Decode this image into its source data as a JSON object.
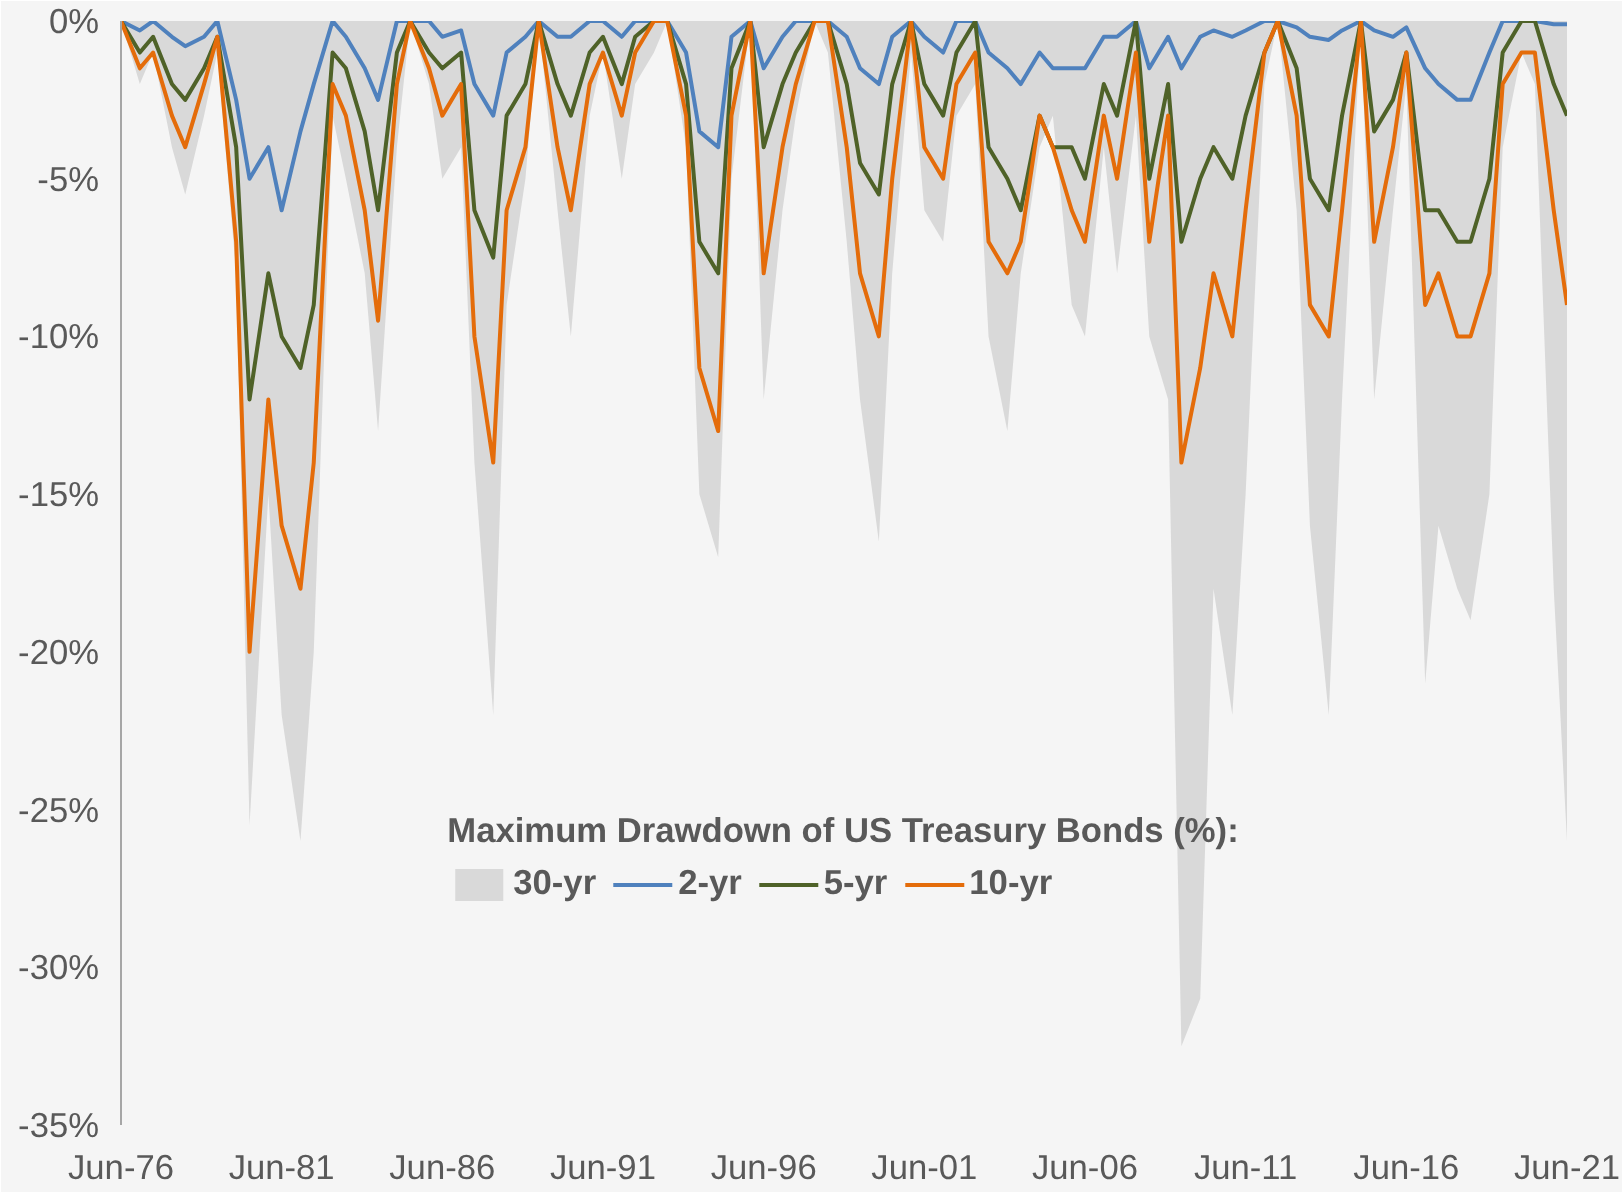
{
  "chart_data": {
    "type": "line",
    "legend_title": "Maximum Drawdown of US Treasury Bonds (%):",
    "x": [
      "1976-06",
      "1977-01",
      "1977-06",
      "1978-01",
      "1978-06",
      "1979-01",
      "1979-06",
      "1980-01",
      "1980-06",
      "1981-01",
      "1981-06",
      "1982-01",
      "1982-06",
      "1983-01",
      "1983-06",
      "1984-01",
      "1984-06",
      "1985-01",
      "1985-06",
      "1986-01",
      "1986-06",
      "1987-01",
      "1987-06",
      "1988-01",
      "1988-06",
      "1989-01",
      "1989-06",
      "1990-01",
      "1990-06",
      "1991-01",
      "1991-06",
      "1992-01",
      "1992-06",
      "1993-01",
      "1993-06",
      "1994-01",
      "1994-06",
      "1995-01",
      "1995-06",
      "1996-01",
      "1996-06",
      "1997-01",
      "1997-06",
      "1998-01",
      "1998-06",
      "1999-01",
      "1999-06",
      "2000-01",
      "2000-06",
      "2001-01",
      "2001-06",
      "2002-01",
      "2002-06",
      "2003-01",
      "2003-06",
      "2004-01",
      "2004-06",
      "2005-01",
      "2005-06",
      "2006-01",
      "2006-06",
      "2007-01",
      "2007-06",
      "2008-01",
      "2008-06",
      "2009-01",
      "2009-06",
      "2010-01",
      "2010-06",
      "2011-01",
      "2011-06",
      "2012-01",
      "2012-06",
      "2013-01",
      "2013-06",
      "2014-01",
      "2014-06",
      "2015-01",
      "2015-06",
      "2016-01",
      "2016-06",
      "2017-01",
      "2017-06",
      "2018-01",
      "2018-06",
      "2019-01",
      "2019-06",
      "2020-01",
      "2020-06",
      "2021-01",
      "2021-06"
    ],
    "series": [
      {
        "name": "30-yr",
        "type": "area",
        "color": "#d9d9d9",
        "values": [
          0,
          -2,
          -1,
          -4,
          -5.5,
          -3,
          -1,
          -8,
          -25.5,
          -15,
          -22,
          -26,
          -20,
          -3,
          -5,
          -8,
          -13,
          -4,
          0,
          -2,
          -5,
          -4,
          -14,
          -22,
          -9,
          -5,
          0,
          -6,
          -10,
          -3,
          -1,
          -5,
          -2,
          -1,
          0,
          -4,
          -15,
          -17,
          -5,
          0,
          -12,
          -6,
          -3,
          0,
          -1,
          -7,
          -12,
          -16.5,
          -8,
          -1,
          -6,
          -7,
          -3,
          -2,
          -10,
          -13,
          -8,
          -4,
          -3,
          -9,
          -10,
          -4,
          -8,
          -3,
          -10,
          -12,
          -32.5,
          -31,
          -18,
          -22,
          -15,
          -2,
          0,
          -6,
          -16,
          -22,
          -12,
          0,
          -12,
          -6,
          -2,
          -21,
          -16,
          -18,
          -19,
          -15,
          -4,
          -1,
          -2,
          -18,
          -26
        ]
      },
      {
        "name": "2-yr",
        "color": "#4f81bd",
        "values": [
          0,
          -0.3,
          0,
          -0.5,
          -0.8,
          -0.5,
          0,
          -2.5,
          -5,
          -4,
          -6,
          -3.5,
          -2,
          0,
          -0.5,
          -1.5,
          -2.5,
          0,
          0,
          0,
          -0.5,
          -0.3,
          -2,
          -3,
          -1,
          -0.5,
          0,
          -0.5,
          -0.5,
          0,
          0,
          -0.5,
          0,
          0,
          0,
          -1,
          -3.5,
          -4,
          -0.5,
          0,
          -1.5,
          -0.5,
          0,
          0,
          0,
          -0.5,
          -1.5,
          -2,
          -0.5,
          0,
          -0.5,
          -1,
          0,
          0,
          -1,
          -1.5,
          -2,
          -1,
          -1.5,
          -1.5,
          -1.5,
          -0.5,
          -0.5,
          0,
          -1.5,
          -0.5,
          -1.5,
          -0.5,
          -0.3,
          -0.5,
          -0.3,
          0,
          0,
          -0.2,
          -0.5,
          -0.6,
          -0.3,
          0,
          -0.3,
          -0.5,
          -0.2,
          -1.5,
          -2,
          -2.5,
          -2.5,
          -1,
          0,
          0,
          0,
          -0.1,
          -0.1
        ]
      },
      {
        "name": "5-yr",
        "color": "#4f6228",
        "values": [
          0,
          -1,
          -0.5,
          -2,
          -2.5,
          -1.5,
          -0.5,
          -4,
          -12,
          -8,
          -10,
          -11,
          -9,
          -1,
          -1.5,
          -3.5,
          -6,
          -1,
          0,
          -1,
          -1.5,
          -1,
          -6,
          -7.5,
          -3,
          -2,
          0,
          -2,
          -3,
          -1,
          -0.5,
          -2,
          -0.5,
          0,
          0,
          -2,
          -7,
          -8,
          -1.5,
          0,
          -4,
          -2,
          -1,
          0,
          0,
          -2,
          -4.5,
          -5.5,
          -2,
          0,
          -2,
          -3,
          -1,
          0,
          -4,
          -5,
          -6,
          -3,
          -4,
          -4,
          -5,
          -2,
          -3,
          0,
          -5,
          -2,
          -7,
          -5,
          -4,
          -5,
          -3,
          -1,
          0,
          -1.5,
          -5,
          -6,
          -3,
          0,
          -3.5,
          -2.5,
          -1,
          -6,
          -6,
          -7,
          -7,
          -5,
          -1,
          0,
          0,
          -2,
          -3
        ]
      },
      {
        "name": "10-yr",
        "color": "#e46c0a",
        "values": [
          0,
          -1.5,
          -1,
          -3,
          -4,
          -2,
          -0.5,
          -7,
          -20,
          -12,
          -16,
          -18,
          -14,
          -2,
          -3,
          -6,
          -9.5,
          -2,
          0,
          -1.5,
          -3,
          -2,
          -10,
          -14,
          -6,
          -4,
          0,
          -4,
          -6,
          -2,
          -1,
          -3,
          -1,
          0,
          0,
          -3,
          -11,
          -13,
          -3,
          0,
          -8,
          -4,
          -2,
          0,
          0,
          -4,
          -8,
          -10,
          -5,
          0,
          -4,
          -5,
          -2,
          -1,
          -7,
          -8,
          -7,
          -3,
          -4,
          -6,
          -7,
          -3,
          -5,
          -1,
          -7,
          -3,
          -14,
          -11,
          -8,
          -10,
          -6,
          -1,
          0,
          -3,
          -9,
          -10,
          -6,
          0,
          -7,
          -4,
          -1,
          -9,
          -8,
          -10,
          -10,
          -8,
          -2,
          -1,
          -1,
          -6,
          -9
        ]
      }
    ],
    "xlim": [
      "1976-06",
      "2021-06"
    ],
    "xticks": [
      {
        "value": "1976-06",
        "label": "Jun-76"
      },
      {
        "value": "1981-06",
        "label": "Jun-81"
      },
      {
        "value": "1986-06",
        "label": "Jun-86"
      },
      {
        "value": "1991-06",
        "label": "Jun-91"
      },
      {
        "value": "1996-06",
        "label": "Jun-96"
      },
      {
        "value": "2001-06",
        "label": "Jun-01"
      },
      {
        "value": "2006-06",
        "label": "Jun-06"
      },
      {
        "value": "2011-06",
        "label": "Jun-11"
      },
      {
        "value": "2016-06",
        "label": "Jun-16"
      },
      {
        "value": "2021-06",
        "label": "Jun-21"
      }
    ],
    "ylim": [
      -35,
      0
    ],
    "yticks": [
      {
        "value": 0,
        "label": "0%"
      },
      {
        "value": -5,
        "label": "-5%"
      },
      {
        "value": -10,
        "label": "-10%"
      },
      {
        "value": -15,
        "label": "-15%"
      },
      {
        "value": -20,
        "label": "-20%"
      },
      {
        "value": -25,
        "label": "-25%"
      },
      {
        "value": -30,
        "label": "-30%"
      },
      {
        "value": -35,
        "label": "-35%"
      }
    ],
    "grid": false,
    "legend": "bottom",
    "line_style": "solid",
    "marker": "none"
  }
}
